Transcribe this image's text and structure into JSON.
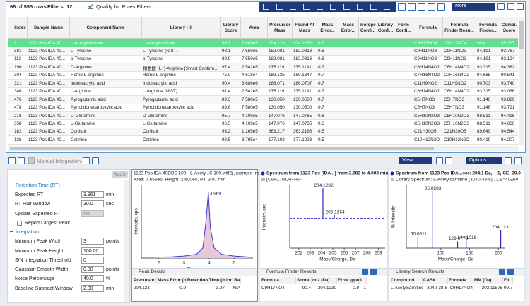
{
  "toolbar": {
    "row_count": "68 of 555 rows",
    "filters": "Filters: 12",
    "qualify": "Qualify for Rules Filters",
    "more": "More"
  },
  "results_table": {
    "columns": [
      "Index",
      "Sample Name",
      "Component Name",
      "Library Hit",
      "Library Score",
      "Area",
      "Precursor Mass",
      "Found At Mass",
      "Mass Error...",
      "Mass Error...",
      "Isotope Confi...",
      "Library Confi...",
      "Form Confi...",
      "Formula",
      "Formula Finder Resu...",
      "Formula Finder...",
      "Combi. Score"
    ],
    "rows": [
      [
        "1",
        "1123 Pos IDA 40...",
        "L-Acetylcarnitine",
        "L-Acetylcarnitine",
        "99.7",
        "7.669e5",
        "204.123",
        "204.1232",
        "0.9",
        "C9H17NO4",
        "C9H17NO4",
        "90.4",
        "95.217"
      ],
      [
        "381",
        "1123 Pos IDA 40...",
        "L-Tyrosine",
        "L-Tyrosine (NIST)",
        "98.1",
        "7.559e5",
        "182.081",
        "182.0813",
        "0.8",
        "C9H11NO3",
        "C9H11NO3",
        "84.191",
        "93.767"
      ],
      [
        "112",
        "1123 Pos IDA 40...",
        "o-Tyrosine",
        "o-Tyrosine",
        "89.9",
        "7.559e5",
        "182.081",
        "182.0813",
        "0.8",
        "C9H11NO3",
        "C9H11NO3",
        "84.191",
        "92.124"
      ],
      [
        "196",
        "1123 Pos IDA 40...",
        "D-Arginine",
        "精氨酸 (L+)-Arginine [Smart Confirmation]",
        "97.4",
        "2.542e5",
        "175.119",
        "175.1191",
        "0.7",
        "C6H14N4O2",
        "C6H14N4O2",
        "93.315",
        "94.382"
      ],
      [
        "304",
        "1123 Pos IDA 40...",
        "Homo-L-arginine",
        "Homo-L-arginine",
        "75.0",
        "4.618e4",
        "189.135",
        "189.1347",
        "0.7",
        "C7H16N4O2",
        "C7H16N4O2",
        "94.685",
        "90.541"
      ],
      [
        "321",
        "1123 Pos IDA 40...",
        "Indoleacrylic acid",
        "Indoleacrylic acid",
        "90.4",
        "3.686e6",
        "188.071",
        "188.0707",
        "0.7",
        "C11H9NO2",
        "C11H9NO2",
        "90.703",
        "93.740"
      ],
      [
        "346",
        "1123 Pos IDA 40...",
        "L-Arginine",
        "L-Arginine (NIST)",
        "91.4",
        "2.542e5",
        "175.119",
        "175.1191",
        "0.7",
        "C6H14N4O2",
        "C6H14N4O2",
        "93.315",
        "93.066"
      ],
      [
        "476",
        "1123 Pos IDA 40...",
        "Pyroglutamic acid",
        "Pyroglutamic acid",
        "89.3",
        "7.580e5",
        "130.050",
        "130.0500",
        "0.7",
        "C5H7NO3",
        "C5H7NO3",
        "91.146",
        "93.829"
      ],
      [
        "478",
        "1123 Pos IDA 40...",
        "Pyrrolidonecarboxylic acid",
        "Pyrrolidonecarboxylic acid",
        "89.8",
        "7.580e5",
        "130.050",
        "130.0500",
        "0.7",
        "C5H7NO3",
        "C5H7NO3",
        "91.146",
        "93.721"
      ],
      [
        "216",
        "1123 Pos IDA 40...",
        "D-Glutamine",
        "D-Glutamine",
        "95.7",
        "4.109e5",
        "147.076",
        "147.0765",
        "0.6",
        "C5H10N2O3",
        "C5H10N2O3",
        "88.511",
        "94.496"
      ],
      [
        "358",
        "1123 Pos IDA 40...",
        "L-Glutamine",
        "L-Glutamine",
        "96.5",
        "4.109e5",
        "147.076",
        "147.0765",
        "0.6",
        "C5H10N2O3",
        "C5H10N2O3",
        "88.511",
        "94.666"
      ],
      [
        "182",
        "1123 Pos IDA 40...",
        "Cortisol",
        "Cortisol",
        "93.2",
        "1.265e5",
        "363.217",
        "363.2168",
        "0.5",
        "C21H30O5",
        "C21H30O5",
        "89.649",
        "94.544"
      ],
      [
        "136",
        "1123 Pos IDA 40...",
        "Cotinine",
        "Cotinine",
        "98.5",
        "8.795e4",
        "177.102",
        "177.1023",
        "0.5",
        "C10H12N2O",
        "C10H12N2O",
        "80.419",
        "94.207"
      ]
    ]
  },
  "bottom_toolbar": {
    "manual_integration": "Manual Integration",
    "view": "View",
    "options": "Options"
  },
  "integration": {
    "apply": "Apply",
    "sections": [
      {
        "title": "Retention Time (RT)",
        "fields": [
          {
            "label": "Expected RT",
            "value": "3.961",
            "unit": "min"
          },
          {
            "label": "RT Half Window",
            "value": "30.0",
            "unit": "sec"
          },
          {
            "label": "Update Expected RT",
            "value": "No"
          },
          {
            "label": "Report Largest Peak"
          }
        ]
      },
      {
        "title": "Integration",
        "fields": [
          {
            "label": "Minimum Peak Width",
            "value": "3",
            "unit": "points"
          },
          {
            "label": "Minimum Peak Height",
            "value": "100.00"
          },
          {
            "label": "S/N Integration Threshold",
            "value": "0"
          },
          {
            "label": "Gaussian Smooth Width",
            "value": "0.00",
            "unit": "points"
          },
          {
            "label": "Noise Percentage",
            "value": "40.0",
            "unit": "%"
          },
          {
            "label": "Baseline Subtract Window",
            "value": "2.00",
            "unit": "min"
          }
        ]
      }
    ]
  },
  "chromatogram": {
    "type": "line",
    "title": "1123 Pos IDA 40DBS 100 - L-Acety...S 100.wiff2), (sample Index: 1)",
    "subtitle": "Area: 7.669e5, Height: 2.600e5, RT: 3.97 min",
    "y_label": "Intensity, cps",
    "x_label": "Time, min",
    "xlim": [
      1.3,
      5.75
    ],
    "xticks": [
      2,
      3,
      4,
      5
    ],
    "ylim": [
      0,
      290000
    ],
    "x": [
      1.5,
      2.0,
      2.5,
      3.0,
      3.5,
      3.75,
      3.88,
      3.969,
      4.05,
      4.2,
      4.5,
      5.0,
      5.5
    ],
    "values": [
      3000,
      4000,
      5000,
      8000,
      15000,
      40000,
      150000,
      260000,
      120000,
      40000,
      15000,
      8000,
      5000
    ],
    "color": "#3a3ad0",
    "peak_label": 3.969
  },
  "peak_details": {
    "title": "Peak Details",
    "columns": [
      "Precursor m/z",
      "Mass Error (ppm)",
      "Retention Time (min)",
      "Ion Rati"
    ],
    "rows": [
      [
        "204.123",
        "0.9",
        "3.97",
        "N/A"
      ]
    ]
  },
  "spectrum": {
    "type": "bar",
    "title": "Spectrum from 1123 Pos (IDA...) from 3.983 to 4.003 min",
    "legend": "[C9H17NO4+H]+",
    "y_label": "Intensity, cps",
    "x_label": "Mass/Charge, Da",
    "xlim": [
      201.2,
      209.6
    ],
    "xticks": [
      202,
      203,
      204,
      205,
      206,
      207,
      208,
      209
    ],
    "ylim": [
      -100,
      110
    ],
    "x": [
      204.1232,
      205.1264
    ],
    "values": [
      100,
      12
    ],
    "color": "#2828c8"
  },
  "formula_finder": {
    "title": "Formula Finder Results",
    "columns": [
      "Formula",
      "Score",
      "m/z (Da)",
      "Error (ppm)",
      "I"
    ],
    "rows": [
      [
        "C9H17NO4",
        "90.4",
        "204.1230",
        "0.9",
        "1"
      ]
    ]
  },
  "library_spectrum": {
    "type": "bar",
    "title": "Spectrum from 1123 Pos IDA...sor: 204.1 Da, + 1, CE: 30.0",
    "legend": "Library Spectrum: L-Acetylcarnitine (3040-38-8) , CE=40±60",
    "y_label": "% Intensity",
    "x_label": "Mass/Charge, Da",
    "xlim": [
      40,
      212
    ],
    "xticks": [
      100,
      150,
      200
    ],
    "ylim": [
      0,
      110
    ],
    "x": [
      60.0811,
      85.0283,
      129.0778,
      144.1016,
      204.1231
    ],
    "values": [
      20,
      100,
      12,
      13,
      32
    ],
    "color": "#2828c8"
  },
  "library_search": {
    "title": "Library Search Results",
    "columns": [
      "Compound",
      "CAS#",
      "Formula",
      "MM (Da)",
      "Fit"
    ],
    "rows": [
      [
        "L-Acetylcarnitine",
        "3040-38-8",
        "C9H17NO4",
        "203.11575",
        "99.7"
      ]
    ]
  }
}
